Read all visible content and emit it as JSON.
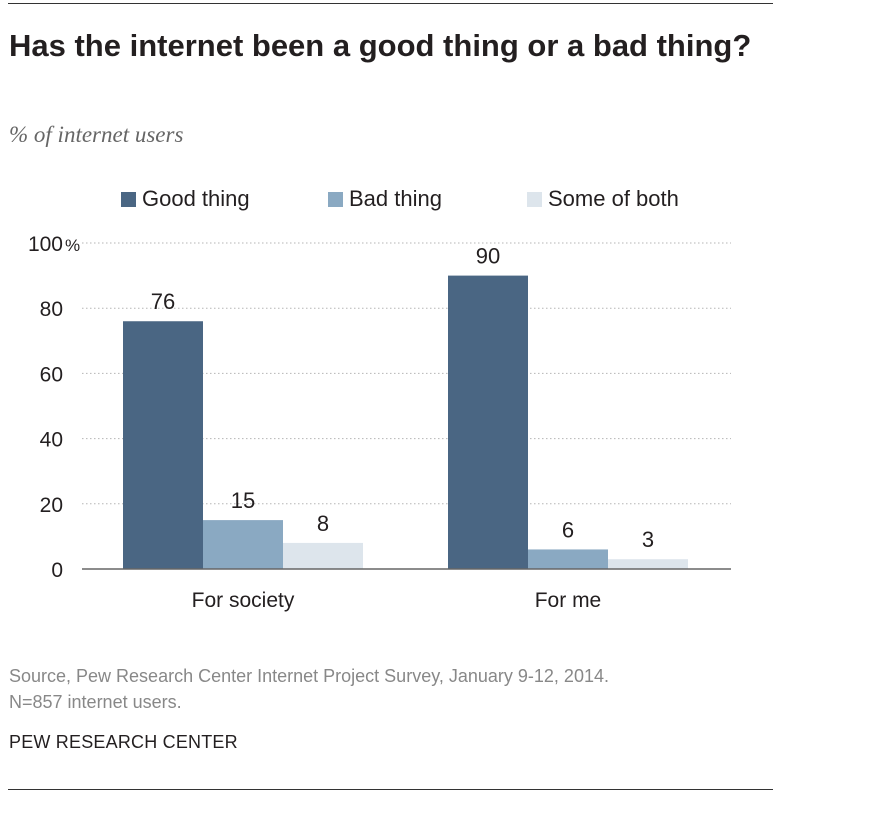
{
  "title": "Has the internet been a good thing or a bad thing?",
  "subtitle": "% of internet users",
  "legend": [
    {
      "label": "Good thing",
      "color": "#4a6683"
    },
    {
      "label": "Bad thing",
      "color": "#8aa9c2"
    },
    {
      "label": "Some of both",
      "color": "#dde5ec"
    }
  ],
  "chart_data": {
    "type": "bar",
    "categories": [
      "For society",
      "For me"
    ],
    "series": [
      {
        "name": "Good thing",
        "values": [
          76,
          90
        ],
        "color": "#4a6683"
      },
      {
        "name": "Bad thing",
        "values": [
          15,
          6
        ],
        "color": "#8aa9c2"
      },
      {
        "name": "Some of both",
        "values": [
          8,
          3
        ],
        "color": "#dde5ec"
      }
    ],
    "y_ticks": [
      "0",
      "20",
      "40",
      "60",
      "80",
      "100"
    ],
    "y_unit": "%",
    "ylim": [
      0,
      100
    ],
    "grid": true,
    "legend_position": "top"
  },
  "source": {
    "line1": "Source, Pew Research Center Internet Project Survey, January 9-12, 2014.",
    "line2": "N=857 internet users."
  },
  "credit": "PEW RESEARCH CENTER"
}
